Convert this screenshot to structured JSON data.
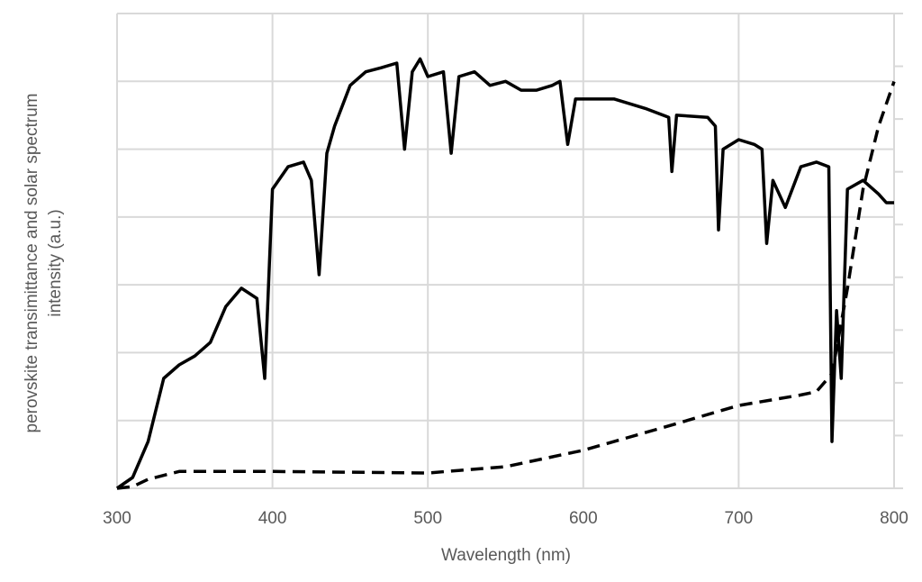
{
  "chart_data": {
    "type": "line",
    "xlabel": "Wavelength (nm)",
    "ylabel": [
      "perovskite transimittance and  solar spectrum",
      "intensity (a.u.)"
    ],
    "xlim": [
      300,
      800
    ],
    "xticks": [
      300,
      400,
      500,
      600,
      700,
      800
    ],
    "ylim": [
      0,
      7
    ],
    "yticks": [
      0,
      1,
      2,
      3,
      4,
      5,
      6,
      7
    ],
    "y2lim": [
      0,
      9
    ],
    "y2ticks": [
      0,
      1,
      2,
      3,
      4,
      5,
      6,
      7,
      8,
      9
    ],
    "ytick_labels": false,
    "grid": true,
    "series": [
      {
        "color": "#000000",
        "dash": false,
        "x": [
          300,
          310,
          320,
          330,
          340,
          350,
          360,
          370,
          380,
          390,
          395,
          400,
          410,
          420,
          425,
          430,
          435,
          440,
          450,
          460,
          470,
          480,
          485,
          490,
          495,
          500,
          510,
          515,
          520,
          530,
          540,
          550,
          560,
          570,
          580,
          585,
          590,
          595,
          600,
          620,
          640,
          655,
          657,
          660,
          680,
          685,
          687,
          690,
          700,
          710,
          715,
          718,
          722,
          730,
          740,
          750,
          758,
          760,
          763,
          766,
          770,
          780,
          790,
          795,
          800
        ],
        "values": [
          0,
          0.16,
          0.69,
          1.62,
          1.82,
          1.95,
          2.15,
          2.68,
          2.95,
          2.8,
          1.62,
          4.41,
          4.74,
          4.81,
          4.54,
          3.15,
          4.94,
          5.34,
          5.94,
          6.14,
          6.2,
          6.27,
          5.0,
          6.14,
          6.33,
          6.07,
          6.14,
          4.94,
          6.07,
          6.14,
          5.94,
          6.0,
          5.87,
          5.87,
          5.94,
          6.0,
          5.07,
          5.74,
          5.74,
          5.74,
          5.6,
          5.47,
          4.67,
          5.5,
          5.47,
          5.34,
          3.81,
          5.0,
          5.14,
          5.07,
          5.0,
          3.61,
          4.54,
          4.14,
          4.74,
          4.81,
          4.74,
          0.69,
          2.62,
          1.62,
          4.41,
          4.54,
          4.34,
          4.21,
          4.21
        ]
      },
      {
        "color": "#000000",
        "dash": true,
        "axis": "y2",
        "x": [
          300,
          310,
          320,
          340,
          400,
          500,
          550,
          600,
          650,
          700,
          740,
          750,
          760,
          770,
          780,
          790,
          800
        ],
        "values": [
          0,
          0.03,
          0.17,
          0.32,
          0.32,
          0.29,
          0.41,
          0.72,
          1.14,
          1.57,
          1.77,
          1.83,
          2.17,
          3.79,
          5.67,
          6.86,
          7.71
        ]
      }
    ]
  }
}
